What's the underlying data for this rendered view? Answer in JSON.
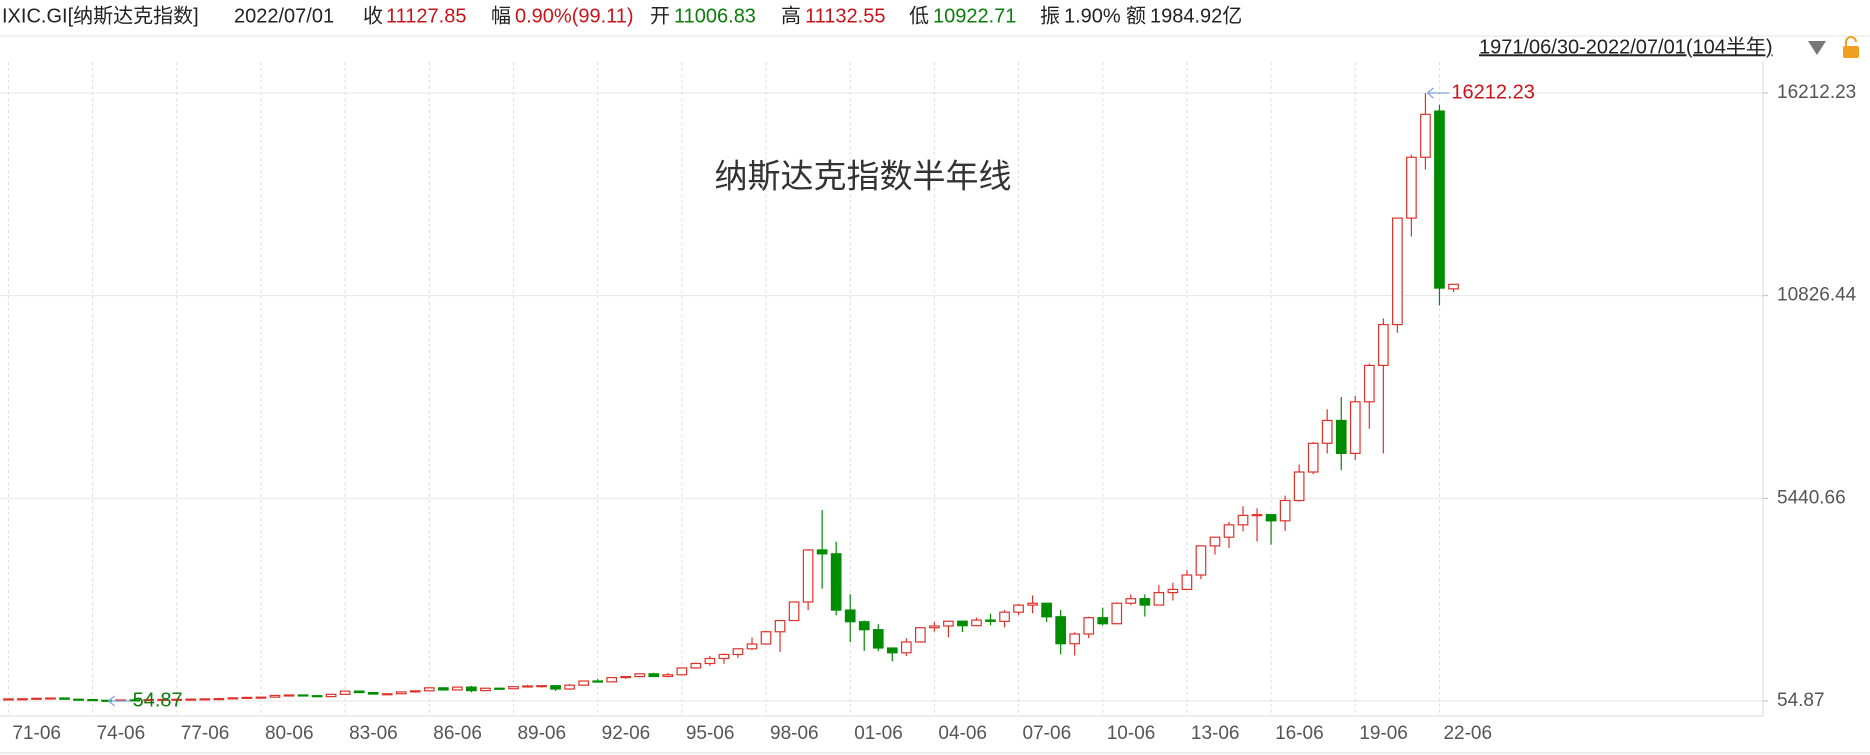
{
  "header": {
    "name": "IXIC.GI[纳斯达克指数]",
    "date": "2022/07/01",
    "close_label": "收",
    "change_label": "幅",
    "change": "0.90%(99.11)",
    "open_label": "开",
    "high_label": "高",
    "low_label": "低",
    "amplitude_label": "振",
    "amplitude": "1.90%",
    "amount_label": "额",
    "amount": "1984.92亿"
  },
  "chart_data": {
    "type": "candlestick",
    "title": "纳斯达克指数半年线",
    "range_label": "1971/06/30-2022/07/01(104半年)",
    "up_color": "#e0312b",
    "down_color": "#008c00",
    "categories": [
      "71-06",
      null,
      null,
      null,
      null,
      null,
      "74-06",
      null,
      null,
      null,
      null,
      null,
      "77-06",
      null,
      null,
      null,
      null,
      null,
      "80-06",
      null,
      null,
      null,
      null,
      null,
      "83-06",
      null,
      null,
      null,
      null,
      null,
      "86-06",
      null,
      null,
      null,
      null,
      null,
      "89-06",
      null,
      null,
      null,
      null,
      null,
      "92-06",
      null,
      null,
      null,
      null,
      null,
      "95-06",
      null,
      null,
      null,
      null,
      null,
      "98-06",
      null,
      null,
      null,
      null,
      null,
      "01-06",
      null,
      null,
      null,
      null,
      null,
      "04-06",
      null,
      null,
      null,
      null,
      null,
      "07-06",
      null,
      null,
      null,
      null,
      null,
      "10-06",
      null,
      null,
      null,
      null,
      null,
      "13-06",
      null,
      null,
      null,
      null,
      null,
      "16-06",
      null,
      null,
      null,
      null,
      null,
      "19-06",
      null,
      null,
      null,
      null,
      null,
      "22-06",
      null
    ],
    "open": [
      101,
      111,
      114,
      127,
      134,
      102,
      92,
      73,
      60,
      83,
      78,
      91,
      98,
      100,
      105,
      112,
      118,
      138,
      151,
      157,
      202,
      215,
      196,
      171,
      232,
      318,
      279,
      239,
      247,
      296,
      325,
      405,
      349,
      424,
      331,
      394,
      381,
      435,
      454,
      462,
      374,
      475,
      586,
      563,
      677,
      704,
      777,
      706,
      752,
      933,
      1052,
      1185,
      1291,
      1442,
      1570,
      1895,
      2193,
      2686,
      4069,
      3966,
      2471,
      2161,
      1950,
      1463,
      1336,
      1623,
      2003,
      2048,
      2175,
      2057,
      2205,
      2172,
      2415,
      2603,
      2652,
      2293,
      1577,
      1835,
      2269,
      2109,
      2653,
      2774,
      2605,
      2935,
      3020,
      3403,
      4177,
      4408,
      4736,
      4987,
      5007,
      4843,
      5383,
      6140,
      6903,
      7510,
      6635,
      8006,
      8973,
      10058,
      12888,
      14504,
      15732,
      11006.83
    ],
    "high": [
      112,
      116,
      129,
      136,
      136,
      111,
      96,
      79,
      88,
      89,
      92,
      98,
      101,
      106,
      120,
      139,
      138,
      152,
      165,
      208,
      224,
      223,
      200,
      241,
      328,
      329,
      288,
      256,
      305,
      326,
      411,
      411,
      430,
      456,
      400,
      397,
      442,
      486,
      470,
      469,
      506,
      586,
      644,
      677,
      711,
      787,
      804,
      800,
      934,
      1070,
      1250,
      1316,
      1455,
      1745,
      1925,
      2200,
      2686,
      4090,
      5132,
      4289,
      2892,
      2193,
      2098,
      1480,
      1724,
      2010,
      2154,
      2192,
      2191,
      2274,
      2375,
      2470,
      2634,
      2861,
      2661,
      2473,
      1880,
      2297,
      2535,
      2676,
      2888,
      2888,
      3134,
      3196,
      3536,
      4177,
      4408,
      4811,
      5231,
      5176,
      5008,
      5513,
      6342,
      6939,
      7806,
      8133,
      8164,
      9023,
      10222,
      12899,
      14572,
      16212.23,
      15901,
      11132.55
    ],
    "low": [
      99,
      105,
      113,
      125,
      100,
      87,
      72,
      54.87,
      60,
      73,
      77,
      86,
      93,
      98,
      99,
      108,
      117,
      136,
      124,
      155,
      190,
      176,
      159,
      166,
      231,
      274,
      225,
      225,
      245,
      276,
      323,
      337,
      346,
      288,
      329,
      365,
      378,
      434,
      411,
      322,
      354,
      470,
      547,
      548,
      645,
      682,
      691,
      705,
      743,
      926,
      988,
      1042,
      1201,
      1412,
      1555,
      1357,
      2192,
      2470,
      3042,
      2332,
      1619,
      1387,
      1375,
      1108,
      1253,
      1603,
      1897,
      1750,
      1890,
      2037,
      2065,
      2012,
      2340,
      2387,
      2155,
      1295,
      1265,
      1727,
      2061,
      2091,
      2603,
      2299,
      2599,
      2726,
      3019,
      3294,
      3946,
      4117,
      4560,
      4292,
      4210,
      4574,
      5356,
      6082,
      6631,
      6190,
      6458,
      7292,
      6631,
      9839,
      12397,
      14175,
      10565,
      10922.71
    ],
    "close": [
      111,
      114,
      127,
      134,
      102,
      92,
      73,
      60,
      83,
      78,
      91,
      98,
      100,
      105,
      112,
      118,
      138,
      151,
      157,
      202,
      215,
      196,
      171,
      232,
      318,
      279,
      239,
      247,
      296,
      325,
      405,
      349,
      424,
      331,
      394,
      381,
      435,
      454,
      462,
      374,
      475,
      586,
      563,
      677,
      704,
      777,
      706,
      752,
      933,
      1052,
      1185,
      1291,
      1442,
      1570,
      1895,
      2193,
      2686,
      4069,
      3966,
      2471,
      2161,
      1950,
      1463,
      1336,
      1623,
      2003,
      2048,
      2175,
      2057,
      2205,
      2172,
      2415,
      2603,
      2652,
      2293,
      1577,
      1835,
      2269,
      2109,
      2653,
      2774,
      2605,
      2935,
      3020,
      3403,
      4177,
      4408,
      4736,
      4987,
      5007,
      4843,
      5383,
      6140,
      6903,
      7510,
      6635,
      8006,
      8973,
      10058,
      12888,
      14504,
      15645,
      11028,
      11127.85
    ],
    "ylim": [
      54.87,
      16212.23
    ],
    "yticks": [
      54.87,
      5440.66,
      10826.44,
      16212.23
    ],
    "grid": true
  }
}
